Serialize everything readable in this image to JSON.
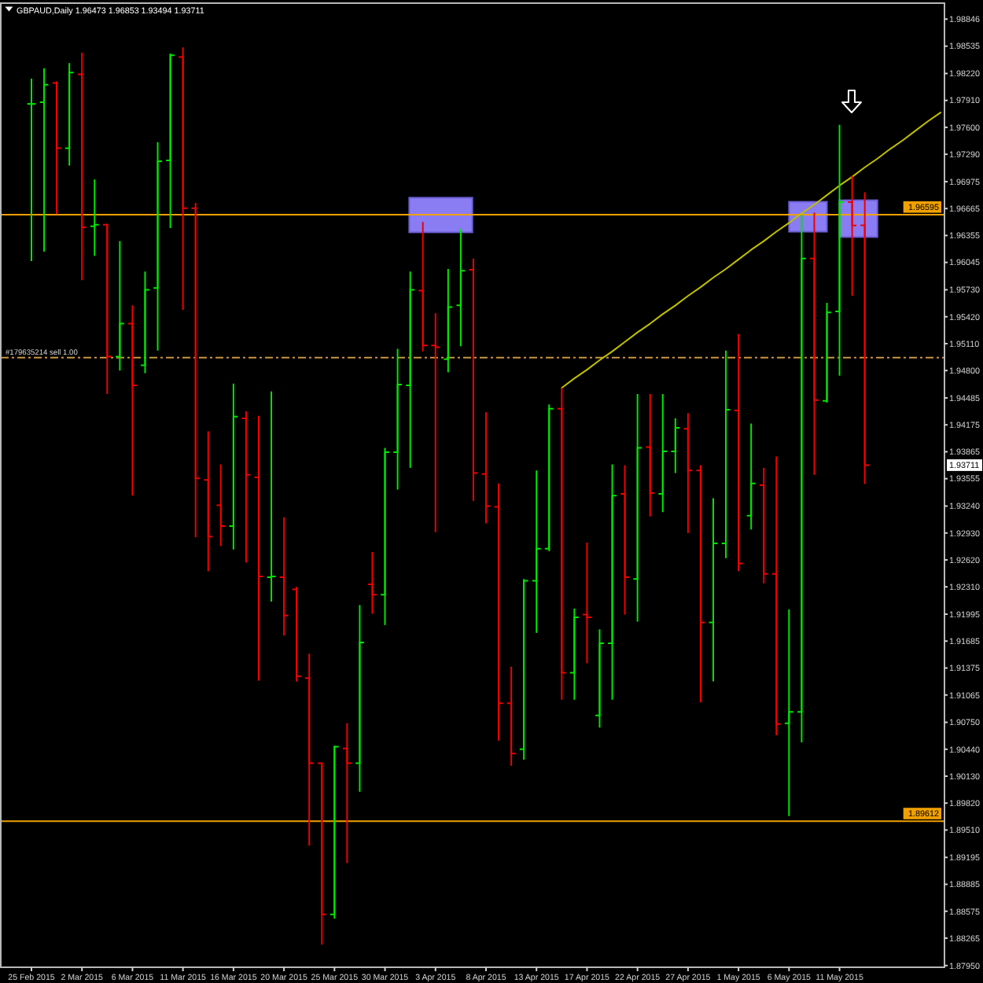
{
  "chart_data": {
    "type": "candlestick",
    "title": "GBPAUD,Daily 1.96473 1.96853 1.93494 1.93711",
    "categories": [
      "25 Feb 2015",
      null,
      null,
      null,
      "2 Mar 2015",
      null,
      null,
      null,
      "6 Mar 2015",
      null,
      null,
      null,
      "11 Mar 2015",
      null,
      null,
      null,
      "16 Mar 2015",
      null,
      null,
      null,
      "20 Mar 2015",
      null,
      null,
      null,
      "25 Mar 2015",
      null,
      null,
      null,
      "30 Mar 2015",
      null,
      null,
      null,
      "3 Apr 2015",
      null,
      null,
      null,
      "8 Apr 2015",
      null,
      null,
      null,
      "13 Apr 2015",
      null,
      null,
      null,
      "17 Apr 2015",
      null,
      null,
      null,
      "22 Apr 2015",
      null,
      null,
      null,
      "27 Apr 2015",
      null,
      null,
      null,
      "1 May 2015",
      null,
      null,
      null,
      "6 May 2015",
      null,
      null,
      null,
      "11 May 2015",
      null,
      null,
      null,
      null,
      null,
      null,
      null,
      null
    ],
    "ohlc": [
      [
        1.9787,
        1.9816,
        1.9606,
        1.9787
      ],
      [
        1.9789,
        1.9828,
        1.9617,
        1.9809
      ],
      [
        1.9811,
        1.9813,
        1.966,
        1.9736
      ],
      [
        1.9736,
        1.9834,
        1.9716,
        1.9823
      ],
      [
        1.9821,
        1.9846,
        1.9584,
        1.9645
      ],
      [
        1.9646,
        1.97,
        1.9612,
        1.9648
      ],
      [
        1.9648,
        1.9649,
        1.9453,
        1.9496
      ],
      [
        1.9496,
        1.9629,
        1.948,
        1.9534
      ],
      [
        1.9534,
        1.9555,
        1.9336,
        1.9463
      ],
      [
        1.9486,
        1.9594,
        1.9477,
        1.9573
      ],
      [
        1.9575,
        1.9743,
        1.9503,
        1.9721
      ],
      [
        1.9722,
        1.9845,
        1.9644,
        1.9843
      ],
      [
        1.9841,
        1.9852,
        1.955,
        1.9667
      ],
      [
        1.9667,
        1.9673,
        1.9288,
        1.9356
      ],
      [
        1.9354,
        1.941,
        1.9249,
        1.9289
      ],
      [
        1.9325,
        1.9372,
        1.9278,
        1.9301
      ],
      [
        1.9301,
        1.9465,
        1.9274,
        1.9427
      ],
      [
        1.9425,
        1.9433,
        1.9259,
        1.936
      ],
      [
        1.9357,
        1.9428,
        1.9123,
        1.9243
      ],
      [
        1.9242,
        1.9456,
        1.9214,
        1.9243
      ],
      [
        1.9242,
        1.9311,
        1.9175,
        1.9198
      ],
      [
        1.9228,
        1.9231,
        1.9122,
        1.9128
      ],
      [
        1.9126,
        1.9154,
        1.8933,
        1.9028
      ],
      [
        1.9028,
        1.9028,
        1.8819,
        1.8854
      ],
      [
        1.8854,
        1.9048,
        1.8849,
        1.9047
      ],
      [
        1.9045,
        1.9074,
        1.8913,
        1.9028
      ],
      [
        1.9028,
        1.921,
        1.8995,
        1.9167
      ],
      [
        1.9234,
        1.9271,
        1.92,
        1.9222
      ],
      [
        1.9222,
        1.9391,
        1.9187,
        1.9386
      ],
      [
        1.9386,
        1.9505,
        1.9343,
        1.9464
      ],
      [
        1.9463,
        1.9594,
        1.9368,
        1.9573
      ],
      [
        1.9572,
        1.9651,
        1.9502,
        1.9509
      ],
      [
        1.9509,
        1.9546,
        1.9294,
        1.9507
      ],
      [
        1.9493,
        1.9597,
        1.9478,
        1.9553
      ],
      [
        1.9555,
        1.9643,
        1.9508,
        1.9595
      ],
      [
        1.9596,
        1.9609,
        1.933,
        1.9362
      ],
      [
        1.9361,
        1.9432,
        1.9304,
        1.9324
      ],
      [
        1.9323,
        1.935,
        1.9054,
        1.9097
      ],
      [
        1.9097,
        1.9139,
        1.9025,
        1.9039
      ],
      [
        1.9044,
        1.924,
        1.9032,
        1.9238
      ],
      [
        1.9238,
        1.9365,
        1.9178,
        1.9275
      ],
      [
        1.9275,
        1.9441,
        1.9272,
        1.9436
      ],
      [
        1.9436,
        1.946,
        1.9101,
        1.9132
      ],
      [
        1.9132,
        1.9206,
        1.9101,
        1.9196
      ],
      [
        1.9199,
        1.9282,
        1.9143,
        1.9196
      ],
      [
        1.9083,
        1.9182,
        1.9069,
        1.9166
      ],
      [
        1.9166,
        1.9372,
        1.9101,
        1.9336
      ],
      [
        1.9338,
        1.9371,
        1.9199,
        1.9242
      ],
      [
        1.924,
        1.9453,
        1.9191,
        1.9391
      ],
      [
        1.9392,
        1.9453,
        1.9312,
        1.9339
      ],
      [
        1.9338,
        1.9453,
        1.9317,
        1.9387
      ],
      [
        1.9387,
        1.9425,
        1.9362,
        1.9414
      ],
      [
        1.9413,
        1.9431,
        1.9293,
        1.9365
      ],
      [
        1.9365,
        1.9371,
        1.9098,
        1.919
      ],
      [
        1.919,
        1.9333,
        1.9122,
        1.9281
      ],
      [
        1.9281,
        1.9503,
        1.9264,
        1.9435
      ],
      [
        1.9434,
        1.9522,
        1.9249,
        1.9258
      ],
      [
        1.9313,
        1.9419,
        1.9297,
        1.935
      ],
      [
        1.9348,
        1.9368,
        1.9235,
        1.9246
      ],
      [
        1.9246,
        1.9381,
        1.906,
        1.9073
      ],
      [
        1.9074,
        1.9205,
        1.8967,
        1.9087
      ],
      [
        1.9087,
        1.9659,
        1.9052,
        1.9609
      ],
      [
        1.9609,
        1.9662,
        1.936,
        1.9446
      ],
      [
        1.9445,
        1.9558,
        1.9443,
        1.9547
      ],
      [
        1.9548,
        1.9763,
        1.9474,
        1.9674
      ],
      [
        1.9674,
        1.9704,
        1.9566,
        1.9647
      ],
      [
        1.96473,
        1.96853,
        1.93494,
        1.93711
      ],
      null,
      null,
      null,
      null,
      null,
      null
    ],
    "colors": [
      "#00e600",
      "#00e600",
      "#f00000",
      "#00e600",
      "#f00000",
      "#00e600",
      "#f00000",
      "#00e600",
      "#f00000",
      "#00e600",
      "#00e600",
      "#00e600",
      "#f00000",
      "#f00000",
      "#f00000",
      "#f00000",
      "#00e600",
      "#f00000",
      "#f00000",
      "#00e600",
      "#f00000",
      "#f00000",
      "#f00000",
      "#f00000",
      "#00e600",
      "#f00000",
      "#00e600",
      "#f00000",
      "#00e600",
      "#00e600",
      "#00e600",
      "#f00000",
      "#f00000",
      "#00e600",
      "#00e600",
      "#f00000",
      "#f00000",
      "#f00000",
      "#f00000",
      "#00e600",
      "#00e600",
      "#00e600",
      "#f00000",
      "#00e600",
      "#f00000",
      "#00e600",
      "#00e600",
      "#f00000",
      "#00e600",
      "#f00000",
      "#00e600",
      "#00e600",
      "#f00000",
      "#f00000",
      "#00e600",
      "#00e600",
      "#f00000",
      "#00e600",
      "#f00000",
      "#f00000",
      "#00e600",
      "#00e600",
      "#f00000",
      "#00e600",
      "#00e600",
      "#f00000",
      "#f00000",
      null,
      null,
      null,
      null,
      null,
      null
    ],
    "series": [
      {
        "type": "line",
        "color": "#c0c000",
        "values": [
          null,
          null,
          null,
          null,
          null,
          null,
          null,
          null,
          null,
          null,
          null,
          null,
          null,
          null,
          null,
          null,
          null,
          null,
          null,
          null,
          null,
          null,
          null,
          null,
          null,
          null,
          null,
          null,
          null,
          null,
          null,
          null,
          null,
          null,
          null,
          null,
          null,
          null,
          null,
          null,
          null,
          null,
          1.946,
          1.9471,
          1.9481,
          1.9492,
          1.9502,
          1.9513,
          1.9524,
          1.9534,
          1.9545,
          1.9555,
          1.9566,
          1.9576,
          1.9587,
          1.9597,
          1.9608,
          1.9619,
          1.9629,
          1.964,
          1.965,
          1.9661,
          1.9671,
          1.9682,
          1.9693,
          1.9703,
          1.9714,
          1.9724,
          1.9735,
          1.9745,
          1.9756,
          1.9767,
          1.9777
        ]
      }
    ],
    "ylim": [
      1.8793,
      1.9903
    ],
    "yticks": [
      1.98846,
      1.98535,
      {
        "value": 1.9822,
        "label": "1.98220"
      },
      {
        "value": 1.9791,
        "label": "1.97910"
      },
      {
        "value": 1.976,
        "label": "1.97600"
      },
      {
        "value": 1.9729,
        "label": "1.97290"
      },
      1.96975,
      1.96665,
      1.96355,
      1.96045,
      {
        "value": 1.9573,
        "label": "1.95730"
      },
      {
        "value": 1.9542,
        "label": "1.95420"
      },
      {
        "value": 1.9511,
        "label": "1.95110"
      },
      {
        "value": 1.948,
        "label": "1.94800"
      },
      1.94485,
      1.94175,
      1.93865,
      1.93555,
      {
        "value": 1.9324,
        "label": "1.93240"
      },
      {
        "value": 1.9293,
        "label": "1.92930"
      },
      {
        "value": 1.9262,
        "label": "1.92620"
      },
      {
        "value": 1.9231,
        "label": "1.92310"
      },
      1.91995,
      1.91685,
      1.91375,
      1.91065,
      {
        "value": 1.9075,
        "label": "1.90750"
      },
      {
        "value": 1.9044,
        "label": "1.90440"
      },
      {
        "value": 1.9013,
        "label": "1.90130"
      },
      {
        "value": 1.8982,
        "label": "1.89820"
      },
      {
        "value": 1.8951,
        "label": "1.89510"
      },
      1.89195,
      1.88885,
      1.88575,
      1.88265,
      {
        "value": 1.8795,
        "label": "1.87950"
      }
    ],
    "ref_lines": [
      {
        "axis": "y",
        "value": 1.96595,
        "label": "1.96595",
        "color": "#f0a000",
        "line_style": "solid"
      },
      {
        "axis": "y",
        "value": 1.89612,
        "label": "1.89612",
        "color": "#f0a000",
        "line_style": "solid"
      },
      {
        "axis": "y",
        "value": 1.9495,
        "label": "#179635214 sell 1.00",
        "color": "#c89640",
        "line_style": "dashed"
      }
    ],
    "annotations": [
      {
        "text": "1.93711",
        "y": 1.93711
      }
    ]
  }
}
